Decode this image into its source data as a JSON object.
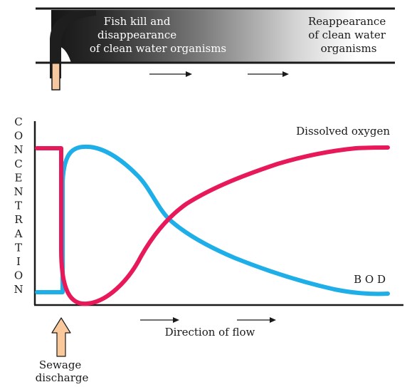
{
  "river": {
    "left_text": [
      "Fish kill and",
      "disappearance",
      "of clean water organisms"
    ],
    "right_text": [
      "Reappearance",
      "of clean water",
      "organisms"
    ]
  },
  "graph": {
    "y_axis_letters": [
      "C",
      "O",
      "N",
      "C",
      "E",
      "N",
      "T",
      "R",
      "A",
      "T",
      "I",
      "O",
      "N"
    ],
    "dissolved_oxygen_label": "Dissolved oxygen",
    "bod_label": "B O D",
    "flow_label": "Direction of flow",
    "sewage_label": [
      "Sewage",
      "discharge"
    ]
  },
  "colors": {
    "dissolved_oxygen": "#e8195a",
    "bod": "#1eaee8",
    "pipe": "#f5c8a0",
    "sewage_arrow": "#f9c99b",
    "band_dark": "#1e1e1e",
    "ink": "#1a1a1a"
  },
  "icons": {
    "flow_arrow": "right-arrow-icon",
    "sewage_arrow": "up-arrow-icon"
  }
}
